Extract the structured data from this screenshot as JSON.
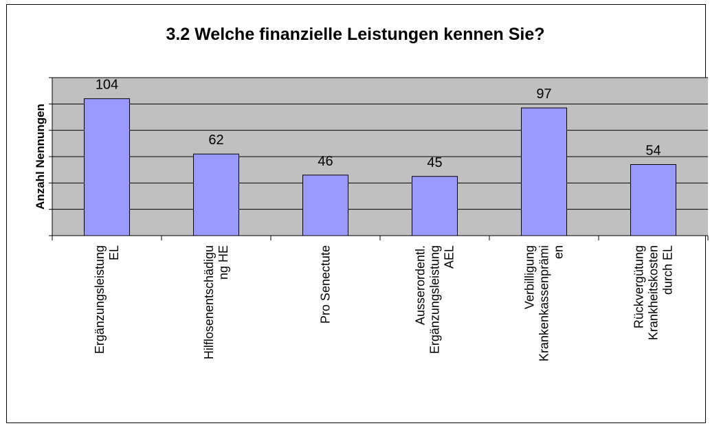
{
  "chart_data": {
    "type": "bar",
    "title": "3.2 Welche finanzielle Leistungen kennen Sie?",
    "y_label": "Anzahl Nennungen",
    "categories": [
      [
        "Ergänzungsleistung",
        "EL"
      ],
      [
        "Hilflosenentschädigu",
        "ng HE"
      ],
      [
        "Pro Senectute"
      ],
      [
        "Ausserordentl.",
        "Ergänzungsleistung",
        "AEL"
      ],
      [
        "Verbilligung",
        "Krankenkassenprämi",
        "en"
      ],
      [
        "Rückvergütung",
        "Krankheitskosten",
        "durch EL"
      ]
    ],
    "values": [
      104,
      62,
      46,
      45,
      97,
      54
    ],
    "color": "#9999ff",
    "ylim": [
      0,
      120
    ],
    "yticks": [
      0,
      20,
      40,
      60,
      80,
      100,
      120
    ],
    "grid": true
  }
}
